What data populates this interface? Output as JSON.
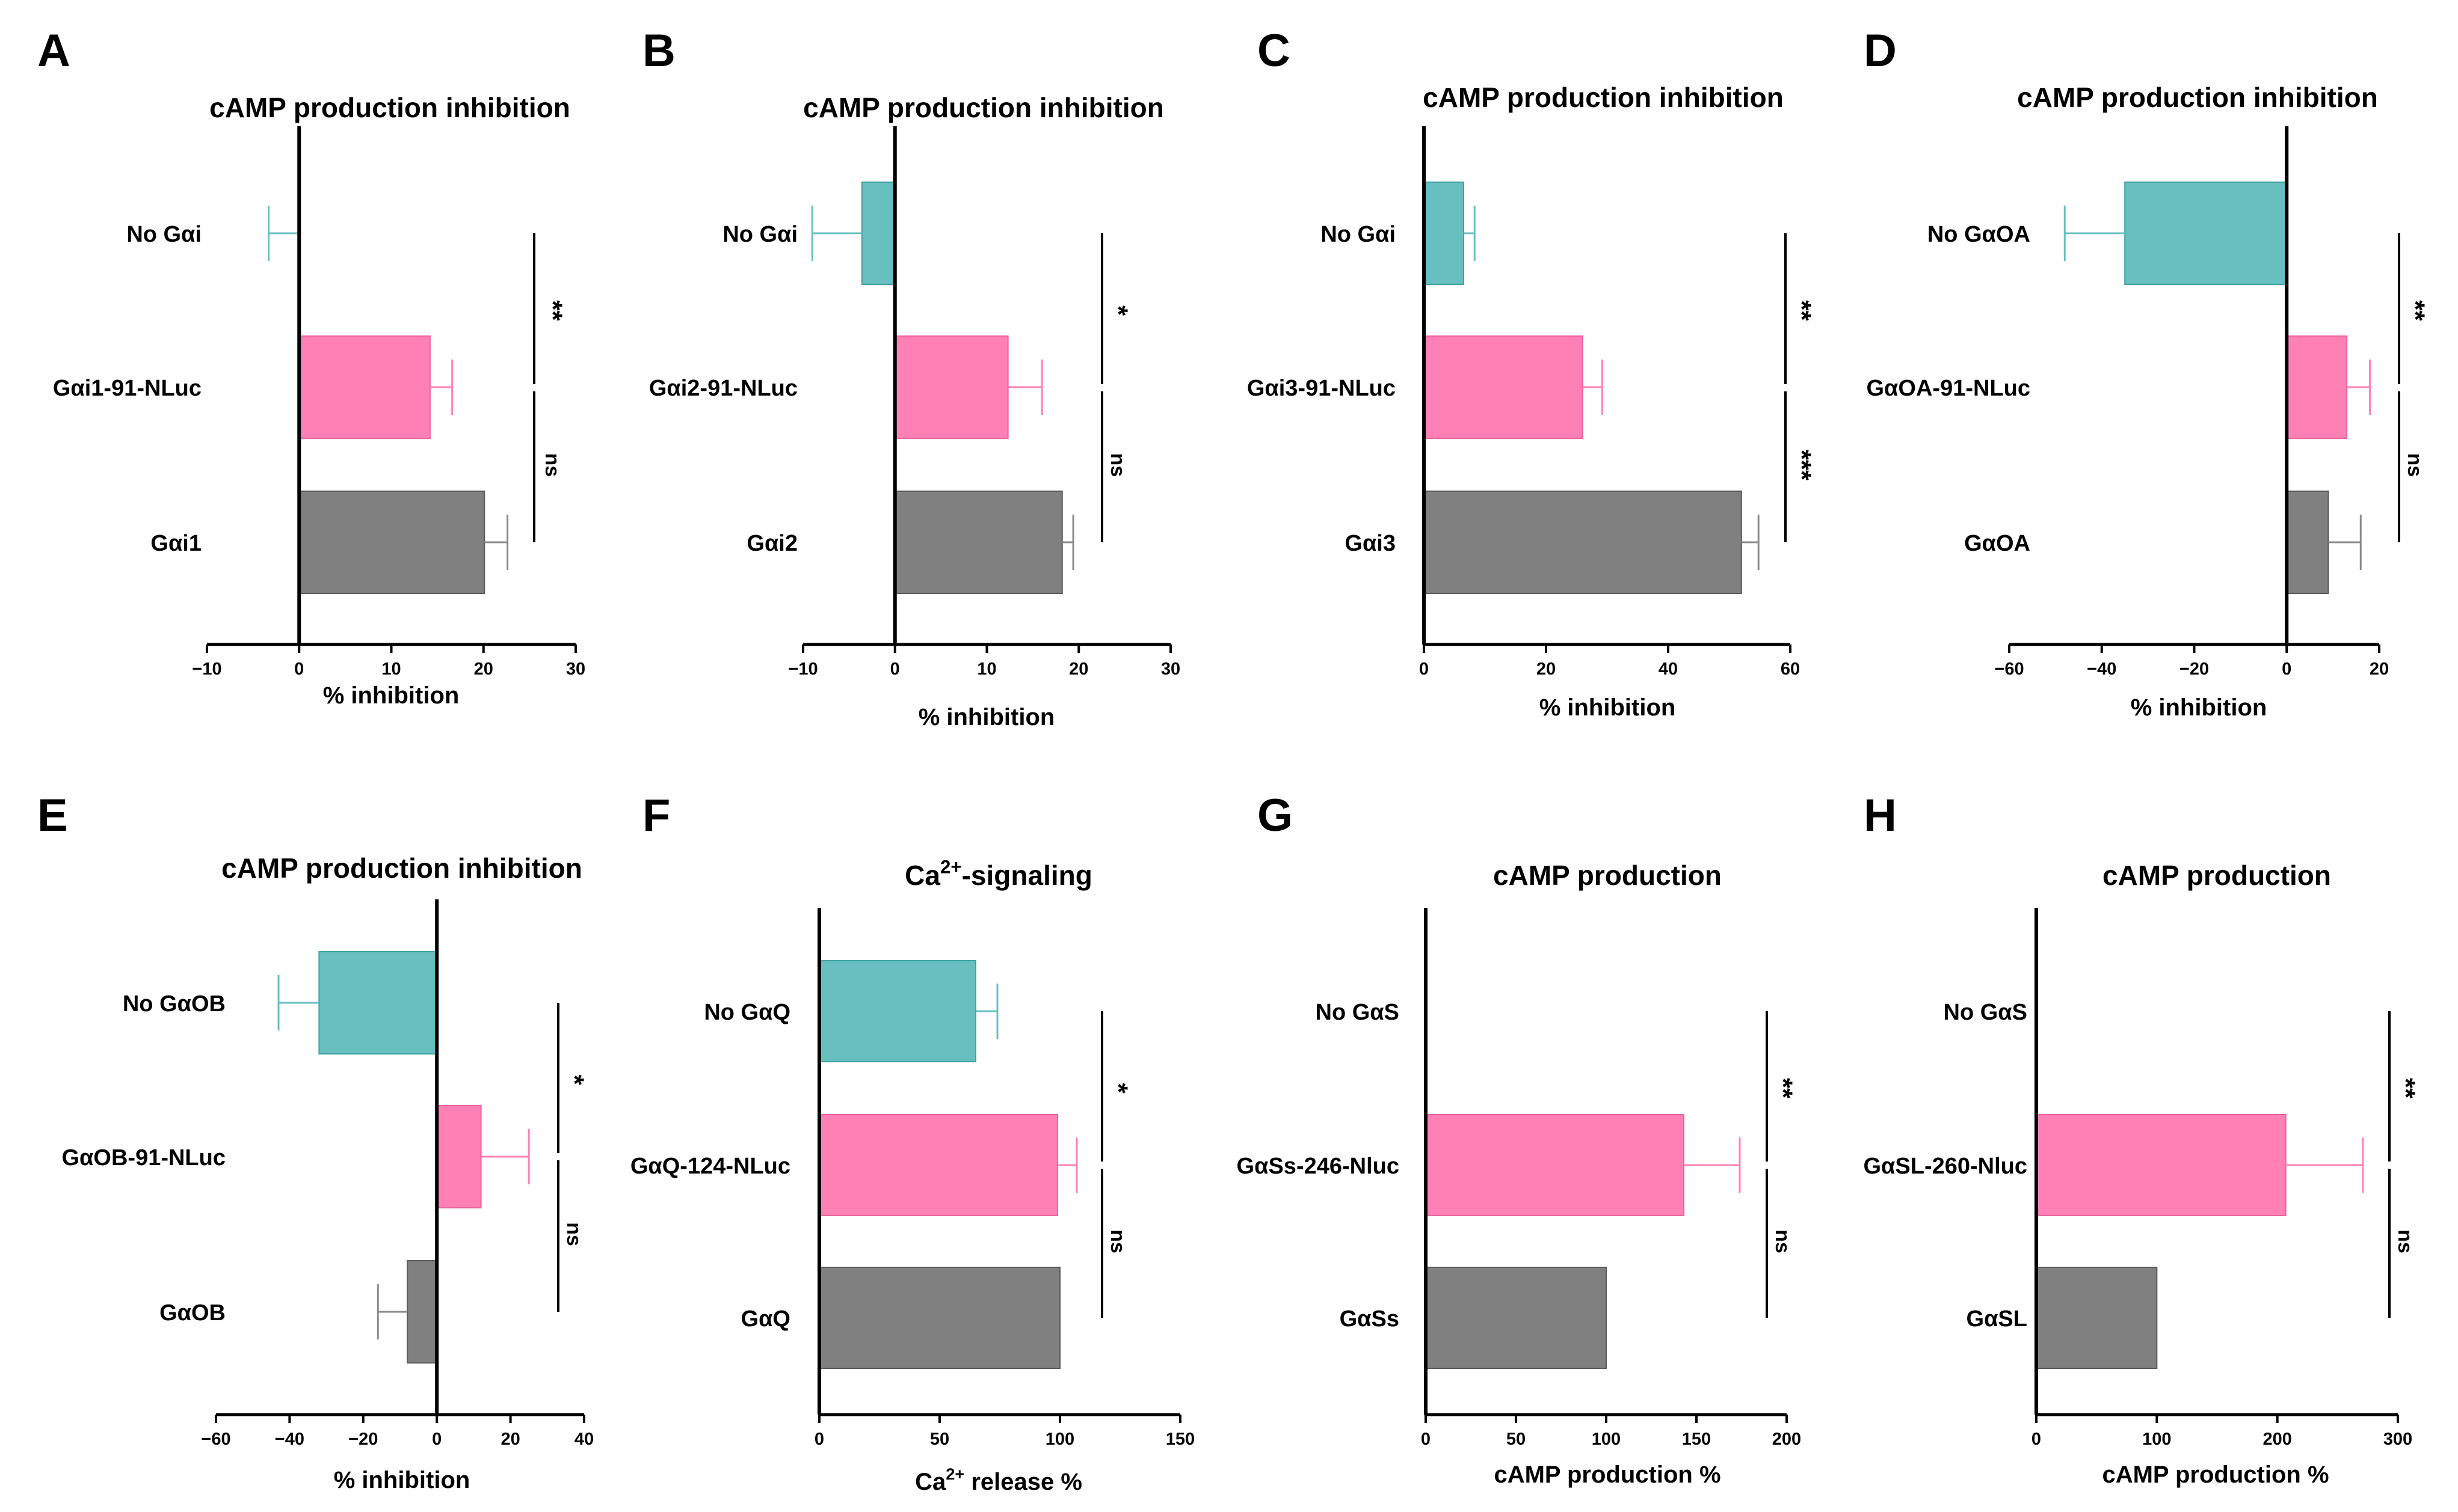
{
  "colors": {
    "control": "#67bfc0",
    "fusion": "#ff80b5",
    "wildtype": "#808080",
    "axis": "#000000"
  },
  "chart_data": [
    {
      "panel": "A",
      "type": "bar",
      "orientation": "horizontal",
      "title": "cAMP production inhibition",
      "xlabel": "% inhibition",
      "categories": [
        "No Gαi",
        "Gαi1-91-NLuc",
        "Gαi1"
      ],
      "values": [
        0,
        14.2,
        20.1
      ],
      "errors": [
        3.3,
        2.4,
        2.5
      ],
      "xlim": [
        -10,
        30
      ],
      "xticks": [
        -10,
        0,
        10,
        20,
        30
      ],
      "tick_labels": [
        "−10",
        "0",
        "10",
        "20",
        "30"
      ],
      "significance": [
        "**",
        "ns"
      ]
    },
    {
      "panel": "B",
      "type": "bar",
      "orientation": "horizontal",
      "title": "cAMP production inhibition",
      "xlabel": "% inhibition",
      "categories": [
        "No Gαi",
        "Gαi2-91-NLuc",
        "Gαi2"
      ],
      "values": [
        -3.6,
        12.3,
        18.2
      ],
      "errors": [
        5.4,
        3.7,
        1.2
      ],
      "xlim": [
        -10,
        30
      ],
      "xticks": [
        -10,
        0,
        10,
        20,
        30
      ],
      "tick_labels": [
        "−10",
        "0",
        "10",
        "20",
        "30"
      ],
      "significance": [
        "*",
        "ns"
      ]
    },
    {
      "panel": "C",
      "type": "bar",
      "orientation": "horizontal",
      "title": "cAMP production inhibition",
      "xlabel": "% inhibition",
      "categories": [
        "No Gαi",
        "Gαi3-91-NLuc",
        "Gαi3"
      ],
      "values": [
        6.5,
        26,
        52
      ],
      "errors": [
        1.8,
        3.2,
        2.8
      ],
      "xlim": [
        0,
        60
      ],
      "xticks": [
        0,
        20,
        40,
        60
      ],
      "tick_labels": [
        "0",
        "20",
        "40",
        "60"
      ],
      "significance": [
        "**",
        "***"
      ]
    },
    {
      "panel": "D",
      "type": "bar",
      "orientation": "horizontal",
      "title": "cAMP production inhibition",
      "xlabel": "% inhibition",
      "categories": [
        "No GαOA",
        "GαOA-91-NLuc",
        "GαOA"
      ],
      "values": [
        -35,
        13,
        9
      ],
      "errors": [
        13,
        5,
        7
      ],
      "xlim": [
        -60,
        20
      ],
      "xticks": [
        -60,
        -40,
        -20,
        0,
        20
      ],
      "tick_labels": [
        "−60",
        "−40",
        "−20",
        "0",
        "20"
      ],
      "significance": [
        "**",
        "ns"
      ]
    },
    {
      "panel": "E",
      "type": "bar",
      "orientation": "horizontal",
      "title": "cAMP production inhibition",
      "xlabel": "% inhibition",
      "categories": [
        "No GαOB",
        "GαOB-91-NLuc",
        "GαOB"
      ],
      "values": [
        -32,
        12,
        -8
      ],
      "errors": [
        11,
        13,
        8
      ],
      "xlim": [
        -60,
        40
      ],
      "xticks": [
        -60,
        -40,
        -20,
        0,
        20,
        40
      ],
      "tick_labels": [
        "−60",
        "−40",
        "−20",
        "0",
        "20",
        "40"
      ],
      "significance": [
        "*",
        "ns"
      ]
    },
    {
      "panel": "F",
      "type": "bar",
      "orientation": "horizontal",
      "title": "Ca2+-signaling",
      "xlabel": "Ca2+ release %",
      "categories": [
        "No GαQ",
        "GαQ-124-NLuc",
        "GαQ"
      ],
      "values": [
        65,
        99,
        100
      ],
      "errors": [
        9,
        8,
        0
      ],
      "xlim": [
        0,
        150
      ],
      "xticks": [
        0,
        50,
        100,
        150
      ],
      "tick_labels": [
        "0",
        "50",
        "100",
        "150"
      ],
      "significance": [
        "*",
        "ns"
      ]
    },
    {
      "panel": "G",
      "type": "bar",
      "orientation": "horizontal",
      "title": "cAMP production",
      "xlabel": "cAMP production  %",
      "categories": [
        "No GαS",
        "GαSs-246-Nluc",
        "GαSs"
      ],
      "values": [
        0,
        143,
        100
      ],
      "errors": [
        0,
        31,
        0
      ],
      "xlim": [
        0,
        200
      ],
      "xticks": [
        0,
        50,
        100,
        150,
        200
      ],
      "tick_labels": [
        "0",
        "50",
        "100",
        "150",
        "200"
      ],
      "significance": [
        "**",
        "ns"
      ]
    },
    {
      "panel": "H",
      "type": "bar",
      "orientation": "horizontal",
      "title": "cAMP production",
      "xlabel": "cAMP production  %",
      "categories": [
        "No GαS",
        "GαSL-260-Nluc",
        "GαSL"
      ],
      "values": [
        0,
        207,
        100
      ],
      "errors": [
        0,
        64,
        0
      ],
      "xlim": [
        0,
        300
      ],
      "xticks": [
        0,
        100,
        200,
        300
      ],
      "tick_labels": [
        "0",
        "100",
        "200",
        "300"
      ],
      "significance": [
        "**",
        "ns"
      ]
    }
  ]
}
